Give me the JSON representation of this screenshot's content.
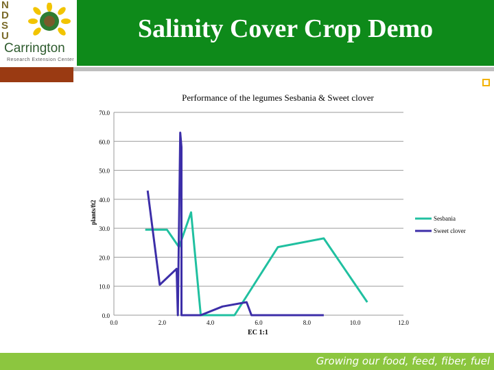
{
  "header": {
    "title": "Salinity Cover Crop Demo",
    "logo_letters": [
      "N",
      "D",
      "S",
      "U"
    ],
    "logo_name": "Carrington",
    "logo_sub": "Research Extension Center"
  },
  "footer": {
    "tagline": "Growing our food, feed, fiber, fuel"
  },
  "colors": {
    "header_green": "#0e8a1a",
    "footer_green": "#8cc63f",
    "accent_brown": "#9a3a12",
    "sesbania": "#20c0a0",
    "sweet_clover": "#3c2ea8"
  },
  "chart_data": {
    "type": "line",
    "title": "Performance of the legumes Sesbania & Sweet clover",
    "xlabel": "EC 1:1",
    "ylabel": "plants/ft2",
    "xlim": [
      0,
      12
    ],
    "ylim": [
      0,
      70
    ],
    "x_ticks": [
      "0.0",
      "2.0",
      "4.0",
      "6.0",
      "8.0",
      "10.0",
      "12.0"
    ],
    "y_ticks": [
      "0.0",
      "10.0",
      "20.0",
      "30.0",
      "40.0",
      "50.0",
      "60.0",
      "70.0"
    ],
    "grid": "horizontal",
    "legend": "right",
    "series": [
      {
        "name": "Sesbania",
        "color": "#20c0a0",
        "x": [
          1.3,
          2.2,
          2.7,
          3.2,
          3.6,
          5.0,
          6.8,
          8.7,
          10.5
        ],
        "y": [
          29.5,
          29.5,
          23.5,
          35.5,
          0.0,
          0.0,
          23.5,
          26.5,
          4.5
        ]
      },
      {
        "name": "Sweet clover",
        "color": "#3c2ea8",
        "x": [
          1.4,
          1.9,
          2.6,
          2.65,
          2.75,
          2.8,
          2.8,
          3.6,
          4.5,
          5.5,
          5.7,
          8.7
        ],
        "y": [
          43.0,
          10.5,
          16.0,
          0.0,
          63.0,
          58.0,
          0.0,
          0.0,
          3.0,
          4.5,
          0.0,
          0.0
        ]
      }
    ]
  }
}
